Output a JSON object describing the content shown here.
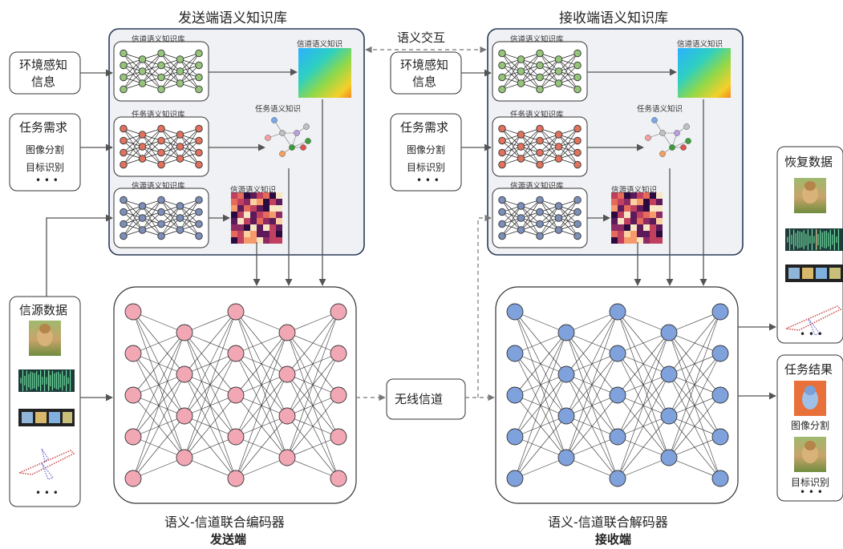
{
  "colors": {
    "tx_neuron": "#f2a7b5",
    "rx_neuron": "#7fa1dc",
    "kb_channel": "#95c47a",
    "kb_task": "#e0725e",
    "kb_source": "#7c8fb8",
    "panel_bg": "#f0f1f4",
    "panel_border": "#2a3a5a"
  },
  "sender": {
    "kb_title": "发送端语义知识库",
    "channel_kb": "信道语义知识库",
    "task_kb": "任务语义知识库",
    "source_kb": "信源语义知识库",
    "channel_knowledge": "信道语义知识",
    "task_knowledge": "任务语义知识",
    "source_knowledge": "信源语义知识",
    "env_info_line1": "环境感知",
    "env_info_line2": "信息",
    "task_req_title": "任务需求",
    "task_req_item1": "图像分割",
    "task_req_item2": "目标识别",
    "task_req_more": "• • •",
    "source_data_title": "信源数据",
    "source_data_more": "• • •",
    "encoder_title": "语义-信道联合编码器",
    "side_label": "发送端"
  },
  "receiver": {
    "kb_title": "接收端语义知识库",
    "channel_kb": "信道语义知识库",
    "task_kb": "任务语义知识库",
    "source_kb": "信源语义知识库",
    "channel_knowledge": "信道语义知识",
    "task_knowledge": "任务语义知识",
    "source_knowledge": "信源语义知识",
    "env_info_line1": "环境感知",
    "env_info_line2": "信息",
    "task_req_title": "任务需求",
    "task_req_item1": "图像分割",
    "task_req_item2": "目标识别",
    "task_req_more": "• • •",
    "decoder_title": "语义-信道联合解码器",
    "side_label": "接收端",
    "recovered_title": "恢复数据",
    "recovered_more": "• • •",
    "task_result_title": "任务结果",
    "task_result_item1": "图像分割",
    "task_result_item2": "目标识别",
    "task_result_more": "• • •"
  },
  "middle": {
    "semantic_interaction": "语义交互",
    "wireless_channel": "无线信道"
  },
  "icons": [
    "dog-photo-icon",
    "audio-waveform-icon",
    "film-strip-icon",
    "airplane-pointcloud-icon",
    "heatmap-icon",
    "knowledge-graph-icon"
  ]
}
